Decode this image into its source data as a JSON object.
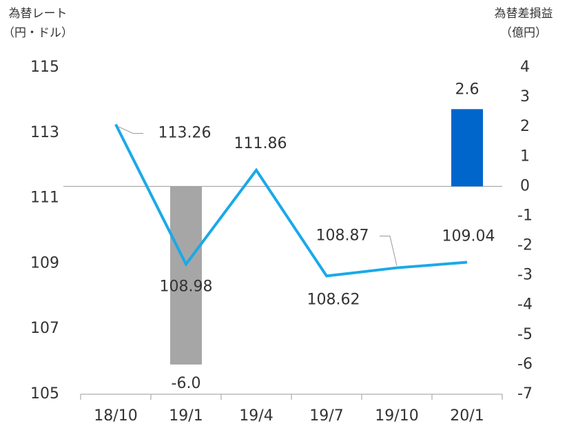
{
  "chart_data": {
    "type": "line-bar",
    "y_label": [
      "為替レート",
      "（円・ドル）"
    ],
    "y2_label": [
      "為替差損益",
      "（億円）"
    ],
    "categories": [
      "18/10",
      "19/1",
      "19/4",
      "19/7",
      "19/10",
      "20/1"
    ],
    "series": [
      {
        "type": "line",
        "color": "#1aa9e8",
        "axis": "y",
        "values": [
          113.26,
          108.98,
          111.86,
          108.62,
          108.87,
          109.04
        ]
      },
      {
        "type": "bar",
        "axis": "y2",
        "values": [
          null,
          -6,
          null,
          null,
          null,
          2.6
        ],
        "value_labels": [
          null,
          "-6.0",
          null,
          null,
          null,
          "2.6"
        ],
        "colors": [
          null,
          "#a6a6a6",
          null,
          null,
          null,
          "#0066cc"
        ]
      }
    ],
    "ylim": [
      105,
      115
    ],
    "yticks": [
      105,
      107,
      109,
      111,
      113,
      115
    ],
    "y2lim": [
      -7,
      4
    ],
    "y2ticks": [
      -7,
      -6,
      -5,
      -4,
      -3,
      -2,
      -1,
      0,
      1,
      2,
      3,
      4
    ]
  }
}
